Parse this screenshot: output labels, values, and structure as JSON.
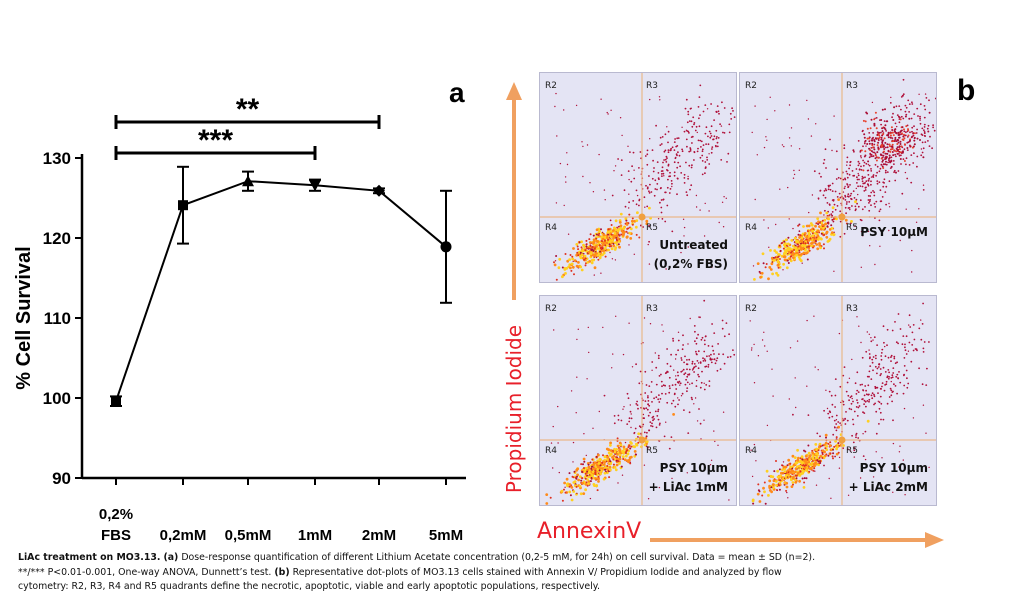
{
  "chart_data": [
    {
      "type": "line",
      "panel_label": "a",
      "ylabel": "% Cell Survival",
      "ylim": [
        90,
        130
      ],
      "yticks": [
        "90",
        "100",
        "110",
        "120",
        "130"
      ],
      "categories": [
        "0,2% FBS",
        "0,2mM",
        "0,5mM",
        "1mM",
        "2mM",
        "5mM"
      ],
      "category_lines": [
        [
          "0,2%",
          "FBS"
        ],
        [
          "0,2mM"
        ],
        [
          "0,5mM"
        ],
        [
          "1mM"
        ],
        [
          "2mM"
        ],
        [
          "5mM"
        ]
      ],
      "series": [
        {
          "values": [
            99.6,
            124.1,
            127.1,
            126.6,
            125.9,
            118.9
          ],
          "error": [
            0.6,
            4.8,
            1.2,
            0.7,
            0.3,
            7.0
          ],
          "markers": [
            "square",
            "square",
            "triangle",
            "triangle-down",
            "diamond",
            "circle"
          ],
          "color": "#000000"
        }
      ],
      "significance": [
        {
          "label": "**",
          "from": "0,2% FBS",
          "to": "2mM"
        },
        {
          "label": "***",
          "from": "0,2% FBS",
          "to": "1mM"
        }
      ],
      "grid": false
    },
    {
      "type": "scatter",
      "panel_label": "b",
      "xlabel": "AnnexinV",
      "ylabel": "Propidium Iodide",
      "axis_color": "#f0a060",
      "label_color": "#e8202a",
      "panels": [
        {
          "quadrants": [
            "R2",
            "R3",
            "R4",
            "R5"
          ],
          "label_lines": [
            "Untreated",
            "(0,2% FBS)"
          ]
        },
        {
          "quadrants": [
            "R2",
            "R3",
            "R4",
            "R5"
          ],
          "label_lines": [
            "PSY 10μM"
          ]
        },
        {
          "quadrants": [
            "R2",
            "R3",
            "R4",
            "R5"
          ],
          "label_lines": [
            "PSY 10μm",
            "+ LiAc 1mM"
          ]
        },
        {
          "quadrants": [
            "R2",
            "R3",
            "R4",
            "R5"
          ],
          "label_lines": [
            "PSY 10μm",
            "+ LiAc 2mM"
          ]
        }
      ]
    }
  ],
  "caption": {
    "line1_bold": "LiAc treatment on MO3.13.",
    "line1_a": "(a)",
    "line1_text": "Dose-response quantification of different Lithium Acetate concentration (0,2-5 mM, for 24h) on cell survival. Data = mean ± SD (n=2).",
    "line2_text1": "**/*** P<0.01-0.001, One-way ANOVA, Dunnett’s test.",
    "line2_b": "(b)",
    "line2_text2": "Representative dot-plots of MO3.13 cells stained with Annexin V/ Propidium Iodide and analyzed by flow",
    "line3_text": "cytometry: R2, R3, R4 and R5 quadrants define the necrotic, apoptotic, viable and early apoptotic populations, respectively."
  }
}
